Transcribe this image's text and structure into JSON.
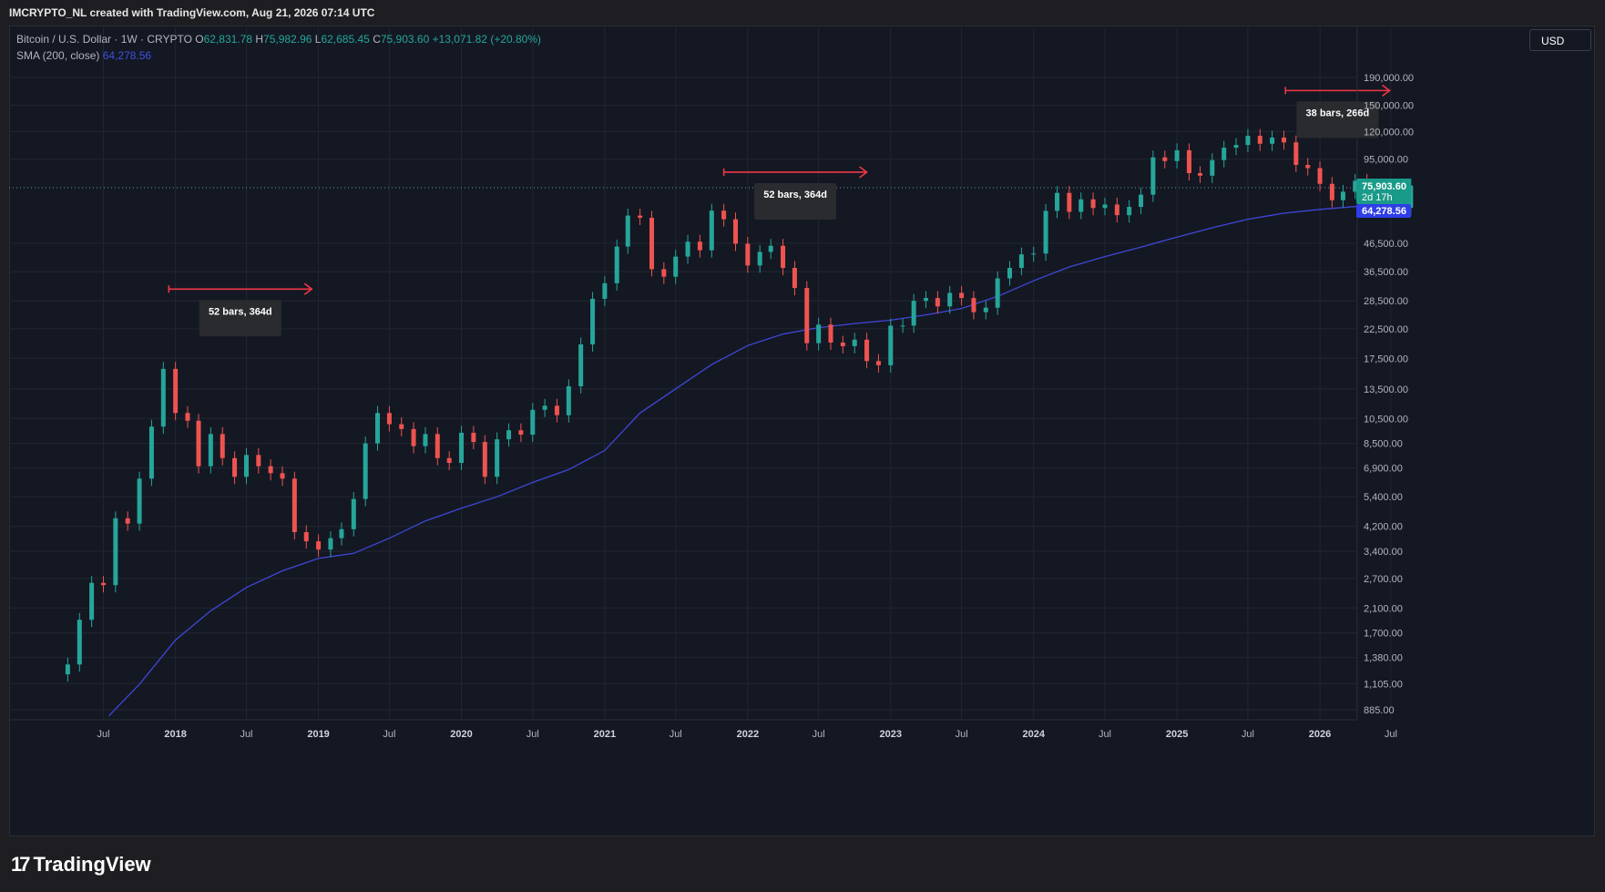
{
  "header": {
    "title": "IMCRYPTO_NL created with TradingView.com, Aug 21, 2026 07:14 UTC"
  },
  "legend": {
    "symbol": "Bitcoin / U.S. Dollar · 1W · CRYPTO",
    "o_label": "O",
    "o_value": "62,831.78",
    "h_label": "H",
    "h_value": "75,982.96",
    "l_label": "L",
    "l_value": "62,685.45",
    "c_label": "C",
    "c_value": "75,903.60",
    "change": "+13,071.82 (+20.80%)",
    "sma_label": "SMA (200, close)",
    "sma_value": "64,278.56"
  },
  "toolbar": {
    "currency": "USD"
  },
  "price_tags": {
    "last_price": "75,903.60",
    "countdown": "2d 17h",
    "sma_price": "64,278.56"
  },
  "annotations": [
    {
      "label": "52 bars, 364d"
    },
    {
      "label": "52 bars, 364d"
    },
    {
      "label": "38 bars, 266d"
    }
  ],
  "footer": {
    "logo_text": "TradingView"
  },
  "colors": {
    "up": "#26a69a",
    "down": "#ef5350",
    "sma": "#3f47d8",
    "arrow": "#f23645",
    "background": "#141823",
    "grid": "#222633"
  },
  "chart_data": {
    "type": "candlestick",
    "symbol": "Bitcoin / U.S. Dollar",
    "interval": "1W",
    "y_scale": "log",
    "y_ticks": [
      "190,000.00",
      "150,000.00",
      "120,000.00",
      "95,000.00",
      "46,500.00",
      "36,500.00",
      "28,500.00",
      "22,500.00",
      "17,500.00",
      "13,500.00",
      "10,500.00",
      "8,500.00",
      "6,900.00",
      "5,400.00",
      "4,200.00",
      "3,400.00",
      "2,700.00",
      "2,100.00",
      "1,700.00",
      "1,380.00",
      "1,105.00",
      "885.00"
    ],
    "x_ticks": [
      "Jul",
      "2018",
      "Jul",
      "2019",
      "Jul",
      "2020",
      "Jul",
      "2021",
      "Jul",
      "2022",
      "Jul",
      "2023",
      "Jul",
      "2024",
      "Jul",
      "2025",
      "Jul",
      "2026",
      "Jul"
    ],
    "grid": true,
    "series": [
      {
        "name": "Bitcoin / U.S. Dollar",
        "kind": "close",
        "points": [
          [
            "2017-04-01",
            1300
          ],
          [
            "2017-05-01",
            1900
          ],
          [
            "2017-06-01",
            2600
          ],
          [
            "2017-07-01",
            2550
          ],
          [
            "2017-08-01",
            4500
          ],
          [
            "2017-09-01",
            4300
          ],
          [
            "2017-10-01",
            6300
          ],
          [
            "2017-11-01",
            9800
          ],
          [
            "2017-12-01",
            16000
          ],
          [
            "2018-01-01",
            11000
          ],
          [
            "2018-02-01",
            10300
          ],
          [
            "2018-03-01",
            7000
          ],
          [
            "2018-04-01",
            9200
          ],
          [
            "2018-05-01",
            7500
          ],
          [
            "2018-06-01",
            6400
          ],
          [
            "2018-07-01",
            7700
          ],
          [
            "2018-08-01",
            7000
          ],
          [
            "2018-09-01",
            6600
          ],
          [
            "2018-10-01",
            6300
          ],
          [
            "2018-11-01",
            4000
          ],
          [
            "2018-12-01",
            3700
          ],
          [
            "2019-01-01",
            3450
          ],
          [
            "2019-02-01",
            3800
          ],
          [
            "2019-03-01",
            4100
          ],
          [
            "2019-04-01",
            5300
          ],
          [
            "2019-05-01",
            8500
          ],
          [
            "2019-06-01",
            11000
          ],
          [
            "2019-07-01",
            10000
          ],
          [
            "2019-08-01",
            9600
          ],
          [
            "2019-09-01",
            8300
          ],
          [
            "2019-10-01",
            9200
          ],
          [
            "2019-11-01",
            7500
          ],
          [
            "2019-12-01",
            7200
          ],
          [
            "2020-01-01",
            9300
          ],
          [
            "2020-02-01",
            8600
          ],
          [
            "2020-03-01",
            6400
          ],
          [
            "2020-04-01",
            8800
          ],
          [
            "2020-05-01",
            9500
          ],
          [
            "2020-06-01",
            9150
          ],
          [
            "2020-07-01",
            11300
          ],
          [
            "2020-08-01",
            11700
          ],
          [
            "2020-09-01",
            10800
          ],
          [
            "2020-10-01",
            13800
          ],
          [
            "2020-11-01",
            19700
          ],
          [
            "2020-12-01",
            29000
          ],
          [
            "2021-01-01",
            33100
          ],
          [
            "2021-02-01",
            45200
          ],
          [
            "2021-03-01",
            58800
          ],
          [
            "2021-04-01",
            57700
          ],
          [
            "2021-05-01",
            37300
          ],
          [
            "2021-06-01",
            35000
          ],
          [
            "2021-07-01",
            41500
          ],
          [
            "2021-08-01",
            47100
          ],
          [
            "2021-09-01",
            43800
          ],
          [
            "2021-10-01",
            61300
          ],
          [
            "2021-11-01",
            57000
          ],
          [
            "2021-12-01",
            46300
          ],
          [
            "2022-01-01",
            38500
          ],
          [
            "2022-02-01",
            43200
          ],
          [
            "2022-03-01",
            45500
          ],
          [
            "2022-04-01",
            37700
          ],
          [
            "2022-05-01",
            31800
          ],
          [
            "2022-06-01",
            19900
          ],
          [
            "2022-07-01",
            23300
          ],
          [
            "2022-08-01",
            20000
          ],
          [
            "2022-09-01",
            19400
          ],
          [
            "2022-10-01",
            20500
          ],
          [
            "2022-11-01",
            17100
          ],
          [
            "2022-12-01",
            16500
          ],
          [
            "2023-01-01",
            23100
          ],
          [
            "2023-02-01",
            23100
          ],
          [
            "2023-03-01",
            28500
          ],
          [
            "2023-04-01",
            29200
          ],
          [
            "2023-05-01",
            27200
          ],
          [
            "2023-06-01",
            30500
          ],
          [
            "2023-07-01",
            29200
          ],
          [
            "2023-08-01",
            25900
          ],
          [
            "2023-09-01",
            26900
          ],
          [
            "2023-10-01",
            34500
          ],
          [
            "2023-11-01",
            37700
          ],
          [
            "2023-12-01",
            42300
          ],
          [
            "2024-01-01",
            42600
          ],
          [
            "2024-02-01",
            61200
          ],
          [
            "2024-03-01",
            71300
          ],
          [
            "2024-04-01",
            60700
          ],
          [
            "2024-05-01",
            67500
          ],
          [
            "2024-06-01",
            62700
          ],
          [
            "2024-07-01",
            64600
          ],
          [
            "2024-08-01",
            59000
          ],
          [
            "2024-09-01",
            63300
          ],
          [
            "2024-10-01",
            70200
          ],
          [
            "2024-11-01",
            96400
          ],
          [
            "2024-12-01",
            93400
          ],
          [
            "2025-01-01",
            102400
          ],
          [
            "2025-02-01",
            84300
          ],
          [
            "2025-03-01",
            82500
          ],
          [
            "2025-04-01",
            94200
          ],
          [
            "2025-05-01",
            104600
          ],
          [
            "2025-06-01",
            107100
          ],
          [
            "2025-07-01",
            115700
          ],
          [
            "2025-08-01",
            108200
          ],
          [
            "2025-09-01",
            114000
          ],
          [
            "2025-10-01",
            109500
          ],
          [
            "2025-11-01",
            90400
          ],
          [
            "2025-12-01",
            88000
          ],
          [
            "2026-01-01",
            77000
          ],
          [
            "2026-02-01",
            67000
          ],
          [
            "2026-03-01",
            72000
          ],
          [
            "2026-04-01",
            79000
          ],
          [
            "2026-05-01",
            74000
          ],
          [
            "2026-06-01",
            62000
          ],
          [
            "2026-07-01",
            64000
          ],
          [
            "2026-08-01",
            62800
          ],
          [
            "2026-08-21",
            75903.6
          ]
        ]
      },
      {
        "name": "SMA (200, close)",
        "kind": "sma",
        "points": [
          [
            "2017-07-15",
            840
          ],
          [
            "2017-10-01",
            1100
          ],
          [
            "2018-01-01",
            1600
          ],
          [
            "2018-04-01",
            2050
          ],
          [
            "2018-07-01",
            2500
          ],
          [
            "2018-10-01",
            2880
          ],
          [
            "2019-01-01",
            3200
          ],
          [
            "2019-04-01",
            3340
          ],
          [
            "2019-07-01",
            3800
          ],
          [
            "2019-10-01",
            4400
          ],
          [
            "2020-01-01",
            4900
          ],
          [
            "2020-04-01",
            5400
          ],
          [
            "2020-07-01",
            6100
          ],
          [
            "2020-10-01",
            6800
          ],
          [
            "2021-01-01",
            8000
          ],
          [
            "2021-04-01",
            11000
          ],
          [
            "2021-07-01",
            13500
          ],
          [
            "2021-10-01",
            16600
          ],
          [
            "2022-01-01",
            19500
          ],
          [
            "2022-04-01",
            21500
          ],
          [
            "2022-07-01",
            22700
          ],
          [
            "2022-10-01",
            23500
          ],
          [
            "2023-01-01",
            24200
          ],
          [
            "2023-04-01",
            25300
          ],
          [
            "2023-07-01",
            26700
          ],
          [
            "2023-10-01",
            29600
          ],
          [
            "2024-01-01",
            33800
          ],
          [
            "2024-04-01",
            38000
          ],
          [
            "2024-07-01",
            41500
          ],
          [
            "2024-10-01",
            45000
          ],
          [
            "2025-01-01",
            49000
          ],
          [
            "2025-04-01",
            53000
          ],
          [
            "2025-07-01",
            57000
          ],
          [
            "2025-10-01",
            60000
          ],
          [
            "2026-01-01",
            62000
          ],
          [
            "2026-04-01",
            63500
          ],
          [
            "2026-08-21",
            64278.56
          ]
        ]
      }
    ],
    "annotations": [
      {
        "label": "52 bars, 364d",
        "from": "2017-12-15",
        "to": "2018-12-15",
        "price": 31500
      },
      {
        "label": "52 bars, 364d",
        "from": "2021-11-01",
        "to": "2022-11-01",
        "price": 85000
      },
      {
        "label": "38 bars, 266d",
        "from": "2025-10-05",
        "to": "2026-06-28",
        "price": 170000
      }
    ]
  }
}
